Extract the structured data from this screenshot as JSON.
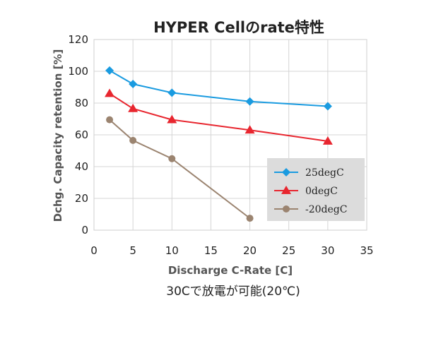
{
  "chart_data": {
    "type": "line",
    "title": "HYPER Cellのrate特性",
    "xlabel": "Discharge C-Rate [C]",
    "ylabel": "Dchg. Capacity retention [%]",
    "caption": "30Cで放電が可能(20℃)",
    "xlim": [
      0,
      35
    ],
    "ylim": [
      0,
      120
    ],
    "xticks": [
      "0",
      "5",
      "10",
      "15",
      "20",
      "25",
      "30",
      "35"
    ],
    "yticks": [
      "0",
      "20",
      "40",
      "60",
      "80",
      "100",
      "120"
    ],
    "grid": true,
    "legend_position": "lower-right",
    "series": [
      {
        "name": "25degC",
        "color": "#1a9be0",
        "marker": "diamond",
        "x": [
          2,
          5,
          10,
          20,
          30
        ],
        "y": [
          100.5,
          92,
          86.5,
          81,
          78
        ]
      },
      {
        "name": "0degC",
        "color": "#e8262f",
        "marker": "triangle",
        "x": [
          2,
          5,
          10,
          20,
          30
        ],
        "y": [
          86,
          76.5,
          69.5,
          63,
          56
        ]
      },
      {
        "name": "-20degC",
        "color": "#9b8470",
        "marker": "circle",
        "x": [
          2,
          5,
          10,
          20
        ],
        "y": [
          69.5,
          56.5,
          45,
          7.5
        ]
      }
    ]
  }
}
